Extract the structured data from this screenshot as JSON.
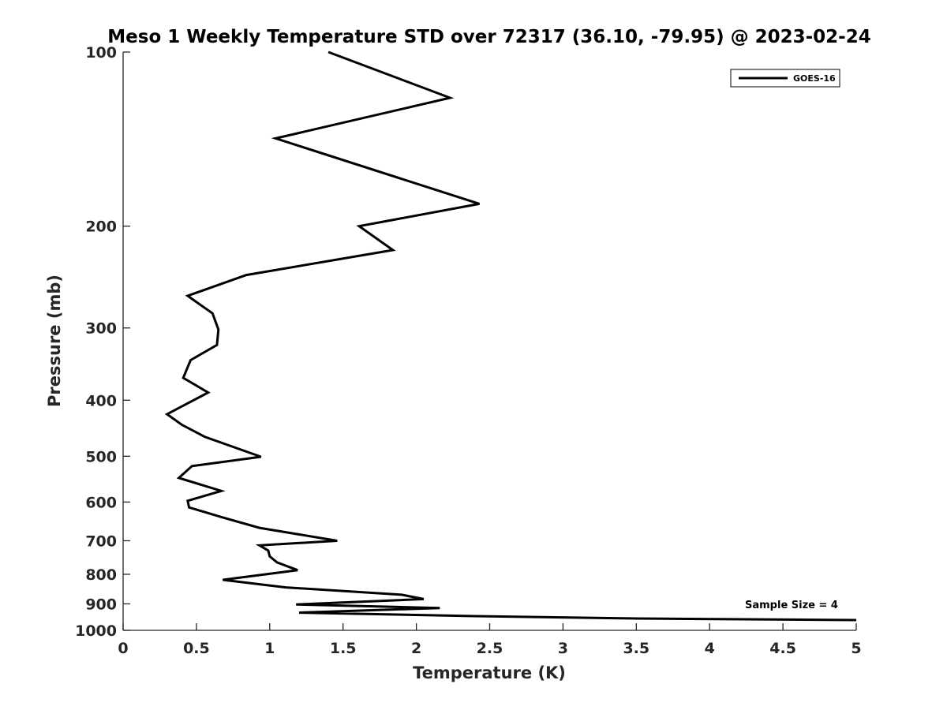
{
  "chart_data": {
    "type": "line",
    "title": "Meso 1 Weekly Temperature STD over 72317 (36.10, -79.95) @ 2023-02-24",
    "xlabel": "Temperature (K)",
    "ylabel": "Pressure (mb)",
    "xlim": [
      0,
      5
    ],
    "ylim": [
      100,
      1000
    ],
    "y_scale": "log",
    "y_reversed": true,
    "xticks": [
      0,
      0.5,
      1,
      1.5,
      2,
      2.5,
      3,
      3.5,
      4,
      4.5,
      5
    ],
    "xtick_labels": [
      "0",
      "0.5",
      "1",
      "1.5",
      "2",
      "2.5",
      "3",
      "3.5",
      "4",
      "4.5",
      "5"
    ],
    "yticks": [
      100,
      200,
      300,
      400,
      500,
      600,
      700,
      800,
      900,
      1000
    ],
    "ytick_labels": [
      "100",
      "200",
      "300",
      "400",
      "500",
      "600",
      "700",
      "800",
      "900",
      "1000"
    ],
    "grid": false,
    "legend_position": "top-right",
    "series": [
      {
        "name": "GOES-16",
        "color": "#000000",
        "points": [
          [
            1.4,
            100
          ],
          [
            2.23,
            120
          ],
          [
            1.04,
            141
          ],
          [
            2.43,
            183
          ],
          [
            1.61,
            200
          ],
          [
            1.84,
            220
          ],
          [
            0.84,
            243
          ],
          [
            0.44,
            264
          ],
          [
            0.61,
            283
          ],
          [
            0.65,
            302
          ],
          [
            0.64,
            321
          ],
          [
            0.46,
            341
          ],
          [
            0.41,
            366
          ],
          [
            0.58,
            388
          ],
          [
            0.4,
            410
          ],
          [
            0.3,
            423
          ],
          [
            0.4,
            441
          ],
          [
            0.56,
            463
          ],
          [
            0.94,
            501
          ],
          [
            0.47,
            520
          ],
          [
            0.38,
            545
          ],
          [
            0.67,
            574
          ],
          [
            0.44,
            597
          ],
          [
            0.45,
            613
          ],
          [
            0.67,
            637
          ],
          [
            0.93,
            665
          ],
          [
            1.46,
            700
          ],
          [
            0.93,
            713
          ],
          [
            0.99,
            728
          ],
          [
            1.0,
            745
          ],
          [
            1.05,
            763
          ],
          [
            1.19,
            787
          ],
          [
            0.68,
            818
          ],
          [
            1.11,
            843
          ],
          [
            1.9,
            868
          ],
          [
            2.05,
            883
          ],
          [
            1.18,
            902
          ],
          [
            2.16,
            915
          ],
          [
            1.2,
            932
          ],
          [
            2.4,
            945
          ],
          [
            3.5,
            954
          ],
          [
            5.0,
            960
          ]
        ]
      }
    ],
    "annotations": [
      "Sample Size = 4"
    ]
  }
}
